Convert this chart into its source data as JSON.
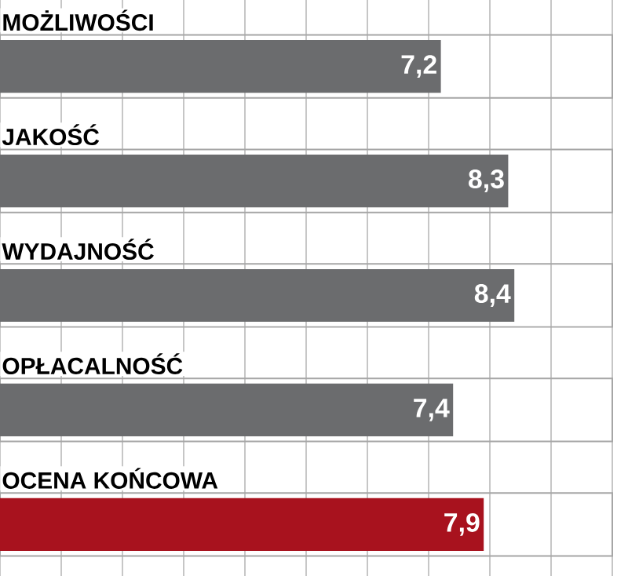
{
  "chart_data": {
    "type": "bar",
    "orientation": "horizontal",
    "categories": [
      "MOŻLIWOŚCI",
      "JAKOŚĆ",
      "WYDAJNOŚĆ",
      "OPŁACALNOŚĆ",
      "OCENA KOŃCOWA"
    ],
    "values": [
      7.2,
      8.3,
      8.4,
      7.4,
      7.9
    ],
    "colors": [
      "#6b6c6e",
      "#6b6c6e",
      "#6b6c6e",
      "#6b6c6e",
      "#a8121e"
    ],
    "value_labels": [
      "7,2",
      "8,3",
      "8,4",
      "7,4",
      "7,9"
    ],
    "xlim": [
      0,
      10
    ],
    "xticks": [
      {
        "value": 0,
        "label": null
      },
      {
        "value": 1,
        "label": null
      },
      {
        "value": 2,
        "label": null
      },
      {
        "value": 3,
        "label": null
      },
      {
        "value": 4,
        "label": null
      },
      {
        "value": 5,
        "label": null
      },
      {
        "value": 6,
        "label": null
      },
      {
        "value": 7,
        "label": null
      },
      {
        "value": 8,
        "label": null
      },
      {
        "value": 9,
        "label": null
      },
      {
        "value": 10,
        "label": null
      }
    ],
    "grid": "x",
    "tick_labels": "y"
  }
}
